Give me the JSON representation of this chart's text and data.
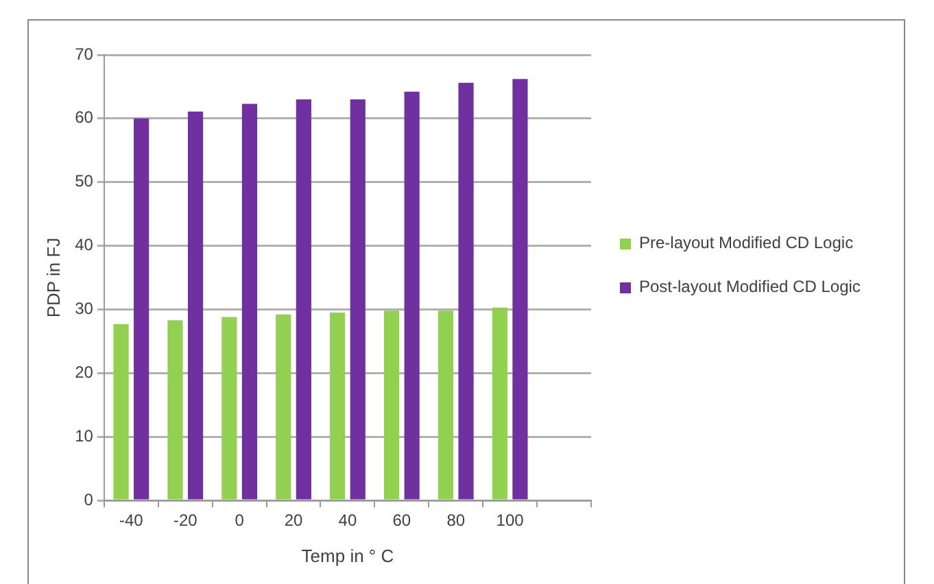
{
  "chart_data": {
    "type": "bar",
    "xlabel": "Temp in ° C",
    "ylabel": "PDP in FJ",
    "categories": [
      "-40",
      "-20",
      "0",
      "20",
      "40",
      "60",
      "80",
      "100",
      null
    ],
    "series": [
      {
        "name": "Pre-layout Modified CD Logic",
        "color": "#92d050",
        "values": [
          27.7,
          28.3,
          28.8,
          29.2,
          29.5,
          29.8,
          29.8,
          30.3,
          null
        ]
      },
      {
        "name": "Post-layout Modified CD Logic",
        "color": "#7030a0",
        "values": [
          60,
          61.1,
          62.3,
          63,
          63,
          64.2,
          65.6,
          66.2,
          null
        ]
      }
    ],
    "ylim": [
      0,
      70
    ],
    "yticks": [
      0,
      10,
      20,
      30,
      40,
      50,
      60,
      70
    ],
    "grid": "y",
    "legend": "right"
  }
}
